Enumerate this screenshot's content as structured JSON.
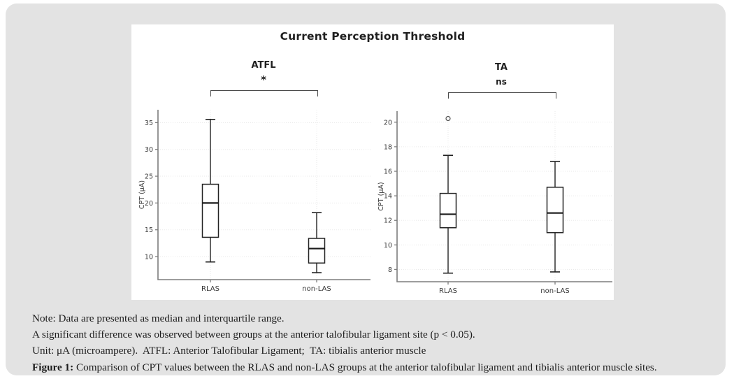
{
  "colors": {
    "card_bg": "#e3e3e3",
    "panel_bg": "#ffffff",
    "box_stroke": "#222222",
    "median_stroke": "#1a1a1a",
    "axis": "#7d7d7d",
    "grid": "#eaeaea",
    "tick_text": "#3a3a3a",
    "outlier_stroke": "#555555",
    "bracket": "#4a4a4a"
  },
  "chart_data": {
    "type": "box",
    "title": "Current Perception Threshold",
    "panels": [
      {
        "label": "ATFL",
        "significance": "*",
        "ylabel": "CPT (μA)",
        "yticks": [
          10,
          15,
          20,
          25,
          30,
          35
        ],
        "ylim": [
          5.7,
          37.4
        ],
        "grid": true,
        "categories": [
          "RLAS",
          "non-LAS"
        ],
        "boxes": [
          {
            "category": "RLAS",
            "whisker_low": 9.0,
            "q1": 13.6,
            "median": 20.0,
            "q3": 23.5,
            "whisker_high": 35.6,
            "outliers": []
          },
          {
            "category": "non-LAS",
            "whisker_low": 7.0,
            "q1": 8.8,
            "median": 11.5,
            "q3": 13.4,
            "whisker_high": 18.2,
            "outliers": []
          }
        ]
      },
      {
        "label": "TA",
        "significance": "ns",
        "ylabel": "CPT (μA)",
        "yticks": [
          8,
          10,
          12,
          14,
          16,
          18,
          20
        ],
        "ylim": [
          7.0,
          20.9
        ],
        "grid": true,
        "categories": [
          "RLAS",
          "non-LAS"
        ],
        "boxes": [
          {
            "category": "RLAS",
            "whisker_low": 7.7,
            "q1": 11.4,
            "median": 12.5,
            "q3": 14.2,
            "whisker_high": 17.3,
            "outliers": [
              20.3
            ]
          },
          {
            "category": "non-LAS",
            "whisker_low": 7.8,
            "q1": 11.0,
            "median": 12.6,
            "q3": 14.7,
            "whisker_high": 16.8,
            "outliers": []
          }
        ]
      }
    ]
  },
  "notes": {
    "line1": "Note: Data are presented as median and interquartile range.",
    "line2": "A significant difference was observed between groups at the anterior talofibular ligament site (p < 0.05).",
    "line3": "Unit: μA (microampere).  ATFL: Anterior Talofibular Ligament;  TA: tibialis anterior muscle",
    "line4_prefix": "Figure 1:",
    "line4_rest": " Comparison of CPT values between the RLAS and non-LAS groups at the anterior talofibular ligament and tibialis anterior muscle sites."
  }
}
